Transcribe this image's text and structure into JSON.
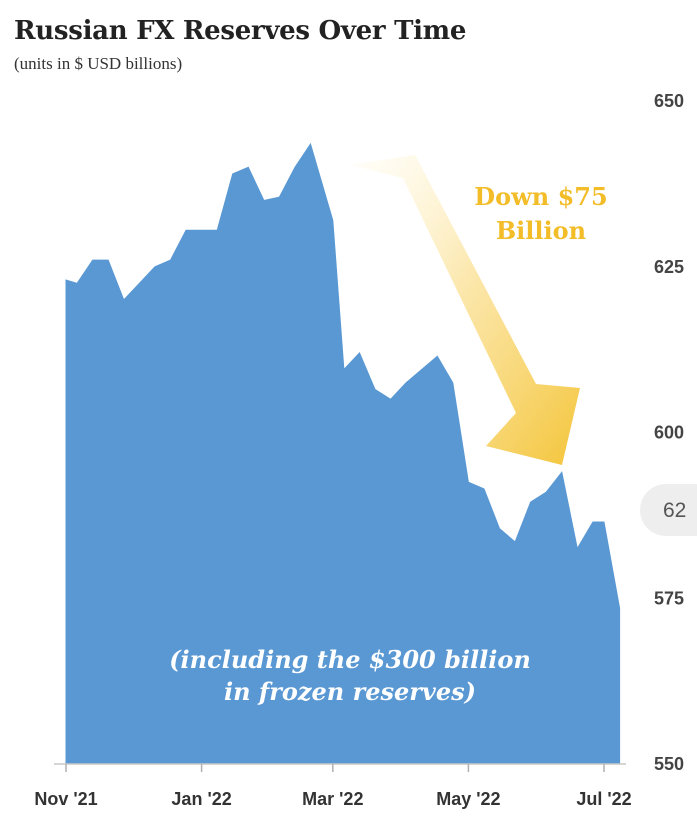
{
  "chart_data": {
    "type": "area",
    "title": "Russian FX Reserves Over Time",
    "subtitle": "(units in $ USD billions)",
    "ylim": [
      550,
      650
    ],
    "y_ticks": [
      "650",
      "625",
      "600",
      "575",
      "550"
    ],
    "y_tick_values": [
      650,
      625,
      600,
      575,
      550
    ],
    "y_axis_position": "right",
    "grid": false,
    "x_ticks": [
      "Nov '21",
      "Jan '22",
      "Mar '22",
      "May '22",
      "Jul '22"
    ],
    "x_tick_dates": [
      "2021-11-01",
      "2022-01-01",
      "2022-03-01",
      "2022-05-01",
      "2022-07-01"
    ],
    "series": [
      {
        "color": "#5a98d3",
        "points": [
          {
            "x": "2021-11-01",
            "y": 623.0
          },
          {
            "x": "2021-11-06",
            "y": 622.5
          },
          {
            "x": "2021-11-13",
            "y": 626.0
          },
          {
            "x": "2021-11-20",
            "y": 626.0
          },
          {
            "x": "2021-11-27",
            "y": 620.0
          },
          {
            "x": "2021-12-04",
            "y": 622.5
          },
          {
            "x": "2021-12-11",
            "y": 625.0
          },
          {
            "x": "2021-12-18",
            "y": 626.0
          },
          {
            "x": "2021-12-25",
            "y": 630.5
          },
          {
            "x": "2022-01-01",
            "y": 630.5
          },
          {
            "x": "2022-01-08",
            "y": 630.5
          },
          {
            "x": "2022-01-15",
            "y": 639.0
          },
          {
            "x": "2022-01-22",
            "y": 640.0
          },
          {
            "x": "2022-01-29",
            "y": 635.0
          },
          {
            "x": "2022-02-05",
            "y": 635.5
          },
          {
            "x": "2022-02-12",
            "y": 640.0
          },
          {
            "x": "2022-02-19",
            "y": 643.5
          },
          {
            "x": "2022-03-01",
            "y": 632.0
          },
          {
            "x": "2022-03-06",
            "y": 609.5
          },
          {
            "x": "2022-03-13",
            "y": 612.0
          },
          {
            "x": "2022-03-20",
            "y": 606.5
          },
          {
            "x": "2022-03-27",
            "y": 605.0
          },
          {
            "x": "2022-04-03",
            "y": 607.5
          },
          {
            "x": "2022-04-10",
            "y": 609.5
          },
          {
            "x": "2022-04-17",
            "y": 611.5
          },
          {
            "x": "2022-04-24",
            "y": 607.5
          },
          {
            "x": "2022-05-01",
            "y": 592.5
          },
          {
            "x": "2022-05-08",
            "y": 591.5
          },
          {
            "x": "2022-05-15",
            "y": 585.5
          },
          {
            "x": "2022-05-22",
            "y": 583.5
          },
          {
            "x": "2022-05-29",
            "y": 589.5
          },
          {
            "x": "2022-06-05",
            "y": 591.0
          },
          {
            "x": "2022-06-12",
            "y": 594.0
          },
          {
            "x": "2022-06-19",
            "y": 582.5
          },
          {
            "x": "2022-06-26",
            "y": 586.5
          },
          {
            "x": "2022-07-01",
            "y": 586.5
          },
          {
            "x": "2022-07-08",
            "y": 573.5
          }
        ]
      }
    ],
    "annotations": {
      "arrow_text_line1": "Down $75",
      "arrow_text_line2": "Billion",
      "note_line1": "(including the $300 billion",
      "note_line2": "in frozen reserves)",
      "arrow_color": "#f2bd28",
      "clipped_bubble_text": "62"
    }
  }
}
